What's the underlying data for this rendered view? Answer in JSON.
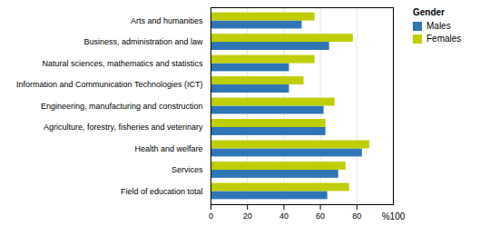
{
  "chart_data": {
    "type": "bar",
    "orientation": "horizontal",
    "categories": [
      "Field of education total",
      "Services",
      "Health and welfare",
      "Agriculture, forestry, fisheries and veterinary",
      "Engineering, manufacturing and construction",
      "Information and Communication Technologies (ICT)",
      "Natural sciences, mathematics and statistics",
      "Business, administration and law",
      "Arts and humanities"
    ],
    "series": [
      {
        "name": "Males",
        "color": "#2E75B6",
        "values": [
          64,
          70,
          83,
          63,
          62,
          43,
          43,
          65,
          50
        ]
      },
      {
        "name": "Females",
        "color": "#BFCE00",
        "values": [
          76,
          74,
          87,
          63,
          68,
          51,
          57,
          78,
          57
        ]
      }
    ],
    "xlim": [
      0,
      100
    ],
    "xticks": [
      0,
      20,
      40,
      60,
      80
    ],
    "annotations": [
      {
        "text": "%100",
        "x": 100
      }
    ],
    "grid": true,
    "legend": "right",
    "legend_title": "Gender"
  }
}
